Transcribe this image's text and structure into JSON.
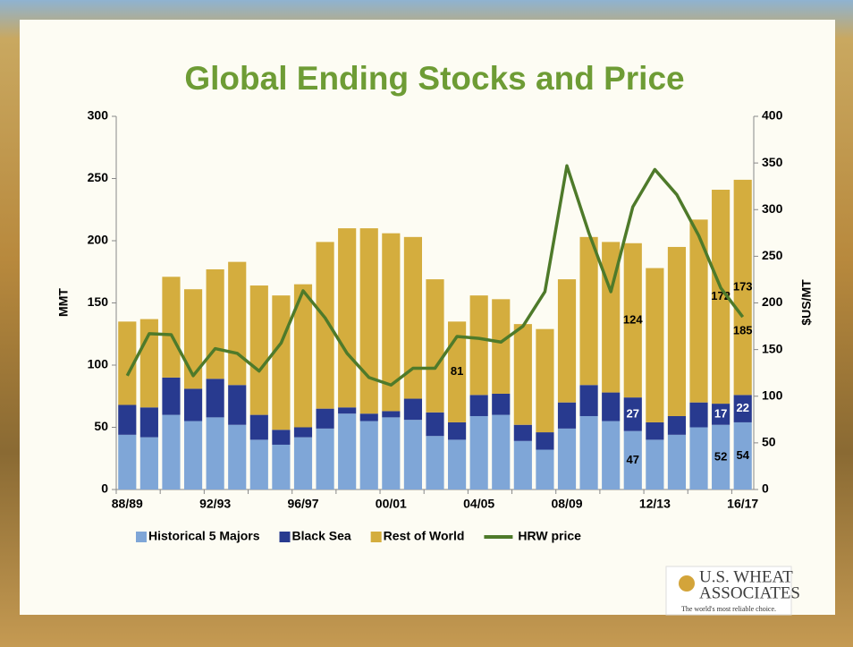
{
  "chart_data": {
    "type": "bar",
    "title": "Global Ending Stocks and Price",
    "y_label": "MMT",
    "y2_label": "$US/MT",
    "categories": [
      "88/89",
      null,
      null,
      null,
      "92/93",
      null,
      null,
      null,
      "96/97",
      null,
      null,
      null,
      "00/01",
      null,
      null,
      null,
      "04/05",
      null,
      null,
      null,
      "08/09",
      null,
      null,
      null,
      "12/13",
      null,
      null,
      null,
      "16/17"
    ],
    "series": [
      {
        "name": "Historical 5 Majors",
        "color": "#7fa6d7",
        "type": "bar",
        "values": [
          44,
          42,
          60,
          55,
          58,
          52,
          40,
          36,
          42,
          49,
          61,
          55,
          58,
          56,
          43,
          40,
          59,
          60,
          39,
          32,
          49,
          59,
          55,
          47,
          40,
          44,
          50,
          52,
          54
        ],
        "value_labels": [
          null,
          null,
          null,
          null,
          null,
          null,
          null,
          null,
          null,
          null,
          null,
          null,
          null,
          null,
          null,
          null,
          null,
          null,
          null,
          null,
          null,
          null,
          null,
          "47",
          null,
          null,
          null,
          "52",
          "54"
        ]
      },
      {
        "name": "Black Sea",
        "color": "#283a8f",
        "type": "bar",
        "values": [
          24,
          24,
          30,
          26,
          31,
          32,
          20,
          12,
          8,
          16,
          5,
          6,
          5,
          17,
          19,
          14,
          17,
          17,
          13,
          14,
          21,
          25,
          23,
          27,
          14,
          15,
          20,
          17,
          22
        ],
        "value_labels": [
          null,
          null,
          null,
          null,
          null,
          null,
          null,
          null,
          null,
          null,
          null,
          null,
          null,
          null,
          null,
          null,
          null,
          null,
          null,
          null,
          null,
          null,
          null,
          "27",
          null,
          null,
          null,
          "17",
          "22"
        ]
      },
      {
        "name": "Rest of World",
        "color": "#d4ad3e",
        "type": "bar",
        "values": [
          67,
          71,
          81,
          80,
          88,
          99,
          104,
          108,
          115,
          134,
          144,
          149,
          143,
          130,
          107,
          81,
          80,
          76,
          81,
          83,
          99,
          119,
          121,
          124,
          124,
          136,
          147,
          172,
          173
        ],
        "value_labels": [
          null,
          null,
          null,
          null,
          null,
          null,
          null,
          null,
          null,
          null,
          null,
          null,
          null,
          null,
          null,
          "81",
          null,
          null,
          null,
          null,
          null,
          null,
          null,
          "124",
          null,
          null,
          null,
          "172",
          "173"
        ]
      },
      {
        "name": "HRW price",
        "color": "#4e7a2a",
        "type": "line",
        "axis": "y2",
        "values": [
          122,
          167,
          166,
          122,
          151,
          146,
          127,
          157,
          213,
          184,
          146,
          120,
          112,
          130,
          130,
          164,
          162,
          158,
          175,
          212,
          347,
          275,
          212,
          303,
          343,
          316,
          272,
          216,
          185
        ],
        "value_labels": [
          null,
          null,
          null,
          null,
          null,
          null,
          null,
          null,
          null,
          null,
          null,
          null,
          null,
          null,
          null,
          null,
          null,
          null,
          null,
          null,
          null,
          null,
          null,
          null,
          null,
          null,
          null,
          null,
          "185"
        ]
      }
    ],
    "ylim": [
      0,
      300
    ],
    "yticks": [
      0,
      50,
      100,
      150,
      200,
      250,
      300
    ],
    "y2lim": [
      0,
      400
    ],
    "y2ticks": [
      0,
      50,
      100,
      150,
      200,
      250,
      300,
      350,
      400
    ],
    "stacked": true,
    "grid": false,
    "legend": "bottom"
  },
  "logo": {
    "line1": "U.S. WHEAT",
    "line2": "ASSOCIATES",
    "tagline": "The world's most reliable choice."
  }
}
